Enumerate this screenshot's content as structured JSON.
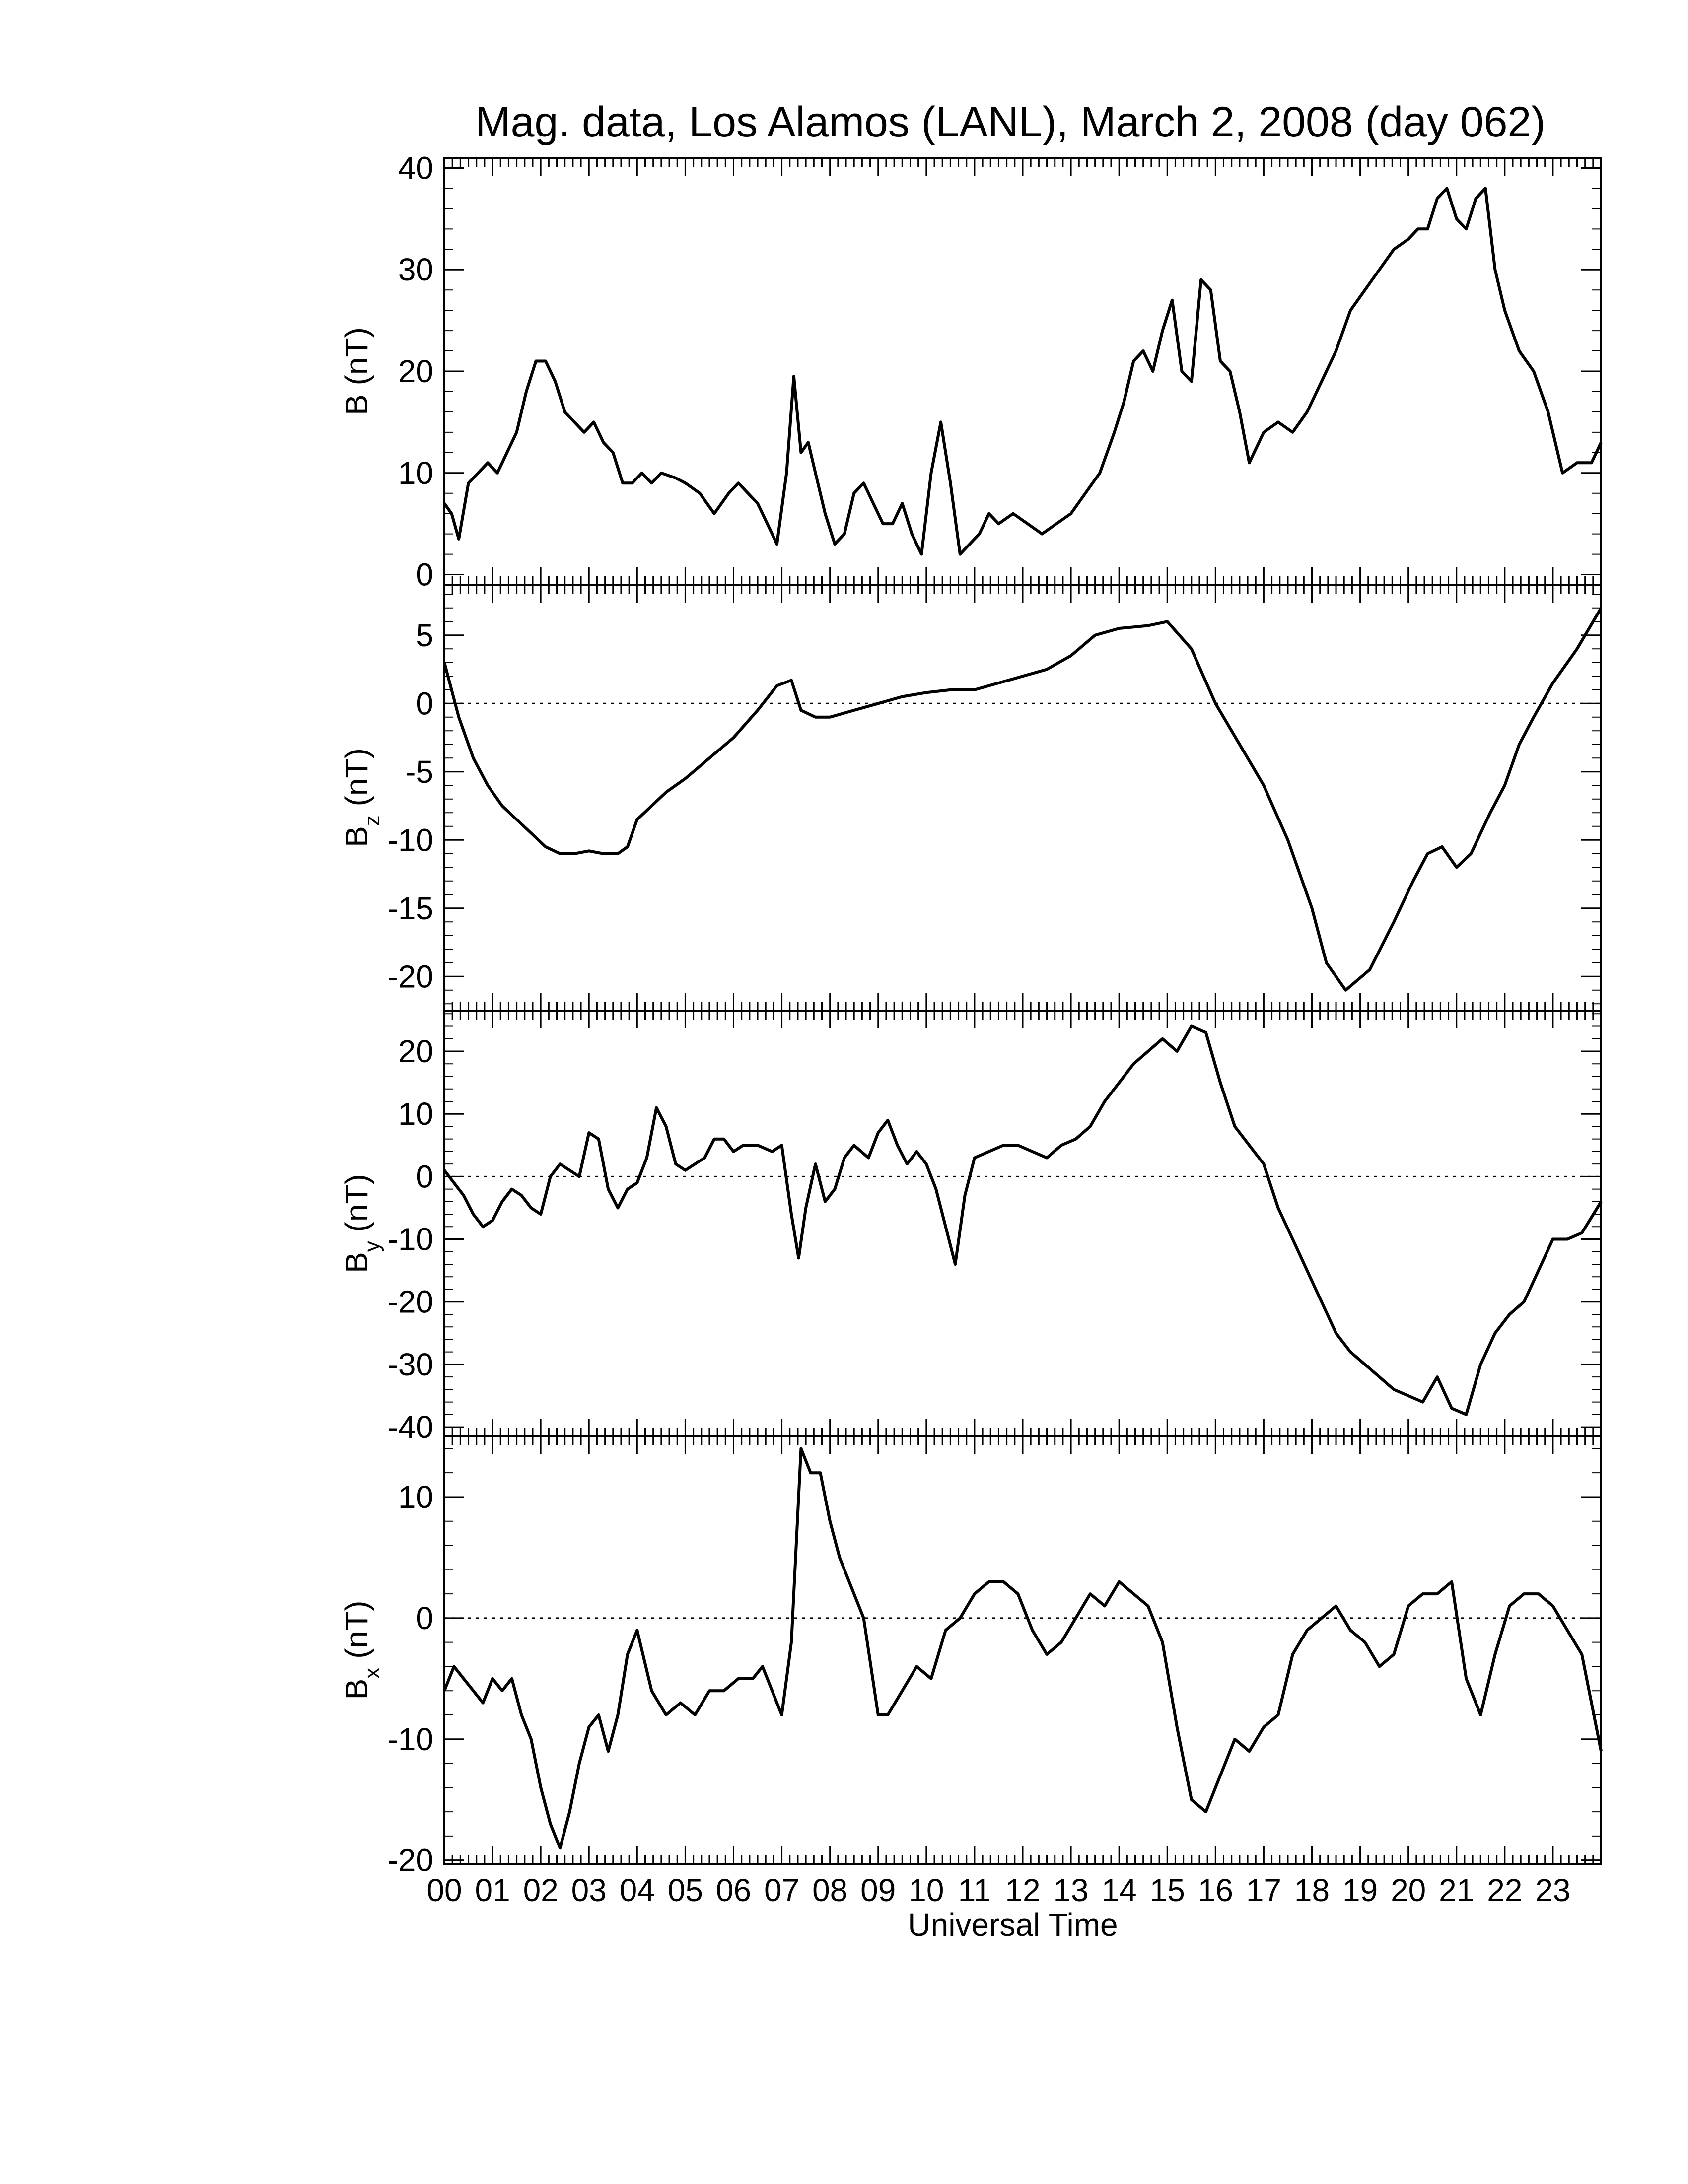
{
  "chart_data": [
    {
      "type": "line",
      "title": "Mag. data, Los Alamos (LANL), March 2, 2008 (day 062)",
      "ylabel": "B (nT)",
      "ylabel_main": "B (nT)",
      "ylabel_sub": "",
      "ylim": [
        -1,
        41
      ],
      "yticks": [
        0,
        10,
        20,
        30,
        40
      ],
      "zero_line": false,
      "grid": false,
      "xlim": [
        0,
        24
      ],
      "x": [
        0,
        0.15,
        0.3,
        0.5,
        0.7,
        0.9,
        1.1,
        1.3,
        1.5,
        1.7,
        1.9,
        2.1,
        2.3,
        2.5,
        2.7,
        2.9,
        3.1,
        3.3,
        3.5,
        3.7,
        3.9,
        4.1,
        4.3,
        4.5,
        4.8,
        5.0,
        5.3,
        5.6,
        5.9,
        6.1,
        6.3,
        6.5,
        6.7,
        6.9,
        7.1,
        7.25,
        7.4,
        7.55,
        7.7,
        7.9,
        8.1,
        8.3,
        8.5,
        8.7,
        8.9,
        9.1,
        9.3,
        9.5,
        9.7,
        9.9,
        10.1,
        10.3,
        10.5,
        10.7,
        10.9,
        11.1,
        11.3,
        11.5,
        11.8,
        12.1,
        12.4,
        12.7,
        13.0,
        13.3,
        13.6,
        13.9,
        14.1,
        14.3,
        14.5,
        14.7,
        14.9,
        15.1,
        15.3,
        15.5,
        15.7,
        15.9,
        16.1,
        16.3,
        16.5,
        16.7,
        17.0,
        17.3,
        17.6,
        17.9,
        18.2,
        18.5,
        18.8,
        19.1,
        19.4,
        19.7,
        20.0,
        20.2,
        20.4,
        20.6,
        20.8,
        21.0,
        21.2,
        21.4,
        21.6,
        21.8,
        22.0,
        22.3,
        22.6,
        22.9,
        23.2,
        23.5,
        23.8,
        24.0
      ],
      "series": [
        {
          "name": "",
          "values": [
            7,
            6,
            3.5,
            9,
            10,
            11,
            10,
            12,
            14,
            18,
            21,
            21,
            19,
            16,
            15,
            14,
            15,
            13,
            12,
            9,
            9,
            10,
            9,
            10,
            9.5,
            9,
            8,
            6,
            8,
            9,
            8,
            7,
            5,
            3,
            10,
            19.5,
            12,
            13,
            10,
            6,
            3,
            4,
            8,
            9,
            7,
            5,
            5,
            7,
            4,
            2,
            10,
            15,
            9,
            2,
            3,
            4,
            6,
            5,
            6,
            5,
            4,
            5,
            6,
            8,
            10,
            14,
            17,
            21,
            22,
            20,
            24,
            27,
            20,
            19,
            29,
            28,
            21,
            20,
            16,
            11,
            14,
            15,
            14,
            16,
            19,
            22,
            26,
            28,
            30,
            32,
            33,
            34,
            34,
            37,
            38,
            35,
            34,
            37,
            38,
            30,
            26,
            22,
            20,
            16,
            10,
            11,
            11,
            13
          ]
        }
      ]
    },
    {
      "type": "line",
      "title": "",
      "ylabel": "Bz (nT)",
      "ylabel_main": "B",
      "ylabel_sub": "z",
      "ylabel_unit": "(nT)",
      "ylim": [
        -22.5,
        8.7
      ],
      "yticks": [
        -20,
        -15,
        -10,
        -5,
        0,
        5
      ],
      "zero_line": true,
      "grid": false,
      "xlim": [
        0,
        24
      ],
      "x": [
        0,
        0.3,
        0.6,
        0.9,
        1.2,
        1.5,
        1.8,
        2.1,
        2.4,
        2.7,
        3.0,
        3.3,
        3.6,
        3.8,
        4.0,
        4.3,
        4.6,
        5.0,
        5.5,
        6.0,
        6.5,
        6.9,
        7.2,
        7.4,
        7.7,
        8.0,
        8.5,
        9.0,
        9.5,
        10.0,
        10.5,
        11.0,
        11.5,
        12.0,
        12.5,
        13.0,
        13.5,
        14.0,
        14.3,
        14.6,
        15.0,
        15.5,
        16.0,
        16.5,
        17.0,
        17.5,
        18.0,
        18.3,
        18.7,
        19.2,
        19.7,
        20.1,
        20.4,
        20.7,
        21.0,
        21.3,
        21.7,
        22.0,
        22.3,
        22.6,
        23.0,
        23.5,
        24.0
      ],
      "series": [
        {
          "name": "",
          "values": [
            3,
            -1,
            -4,
            -6,
            -7.5,
            -8.5,
            -9.5,
            -10.5,
            -11,
            -11,
            -10.8,
            -11,
            -11,
            -10.5,
            -8.5,
            -7.5,
            -6.5,
            -5.5,
            -4,
            -2.5,
            -0.5,
            1.3,
            1.7,
            -0.5,
            -1,
            -1,
            -0.5,
            0,
            0.5,
            0.8,
            1,
            1,
            1.5,
            2,
            2.5,
            3.5,
            5,
            5.5,
            5.6,
            5.7,
            6,
            4,
            0,
            -3,
            -6,
            -10,
            -15,
            -19,
            -21,
            -19.5,
            -16,
            -13,
            -11,
            -10.5,
            -12,
            -11,
            -8,
            -6,
            -3,
            -1,
            1.5,
            4,
            7
          ]
        }
      ]
    },
    {
      "type": "line",
      "title": "",
      "ylabel": "By (nT)",
      "ylabel_main": "B",
      "ylabel_sub": "y",
      "ylabel_unit": "(nT)",
      "ylim": [
        -41.5,
        26.5
      ],
      "yticks": [
        -40,
        -30,
        -20,
        -10,
        0,
        10,
        20
      ],
      "zero_line": true,
      "grid": false,
      "xlim": [
        0,
        24
      ],
      "x": [
        0,
        0.2,
        0.4,
        0.6,
        0.8,
        1.0,
        1.2,
        1.4,
        1.6,
        1.8,
        2.0,
        2.2,
        2.4,
        2.6,
        2.8,
        3.0,
        3.2,
        3.4,
        3.6,
        3.8,
        4.0,
        4.2,
        4.4,
        4.6,
        4.8,
        5.0,
        5.2,
        5.4,
        5.6,
        5.8,
        6.0,
        6.2,
        6.5,
        6.8,
        7.0,
        7.2,
        7.35,
        7.5,
        7.7,
        7.9,
        8.1,
        8.3,
        8.5,
        8.8,
        9.0,
        9.2,
        9.4,
        9.6,
        9.8,
        10.0,
        10.2,
        10.4,
        10.6,
        10.8,
        11.0,
        11.3,
        11.6,
        11.9,
        12.2,
        12.5,
        12.8,
        13.1,
        13.4,
        13.7,
        14.0,
        14.3,
        14.6,
        14.9,
        15.2,
        15.5,
        15.8,
        16.1,
        16.4,
        16.7,
        17.0,
        17.3,
        17.6,
        17.9,
        18.2,
        18.5,
        18.8,
        19.1,
        19.4,
        19.7,
        20.0,
        20.3,
        20.6,
        20.9,
        21.2,
        21.5,
        21.8,
        22.1,
        22.4,
        22.7,
        23.0,
        23.3,
        23.6,
        24.0
      ],
      "series": [
        {
          "name": "",
          "values": [
            1,
            -1,
            -3,
            -6,
            -8,
            -7,
            -4,
            -2,
            -3,
            -5,
            -6,
            0,
            2,
            1,
            0,
            7,
            6,
            -2,
            -5,
            -2,
            -1,
            3,
            11,
            8,
            2,
            1,
            2,
            3,
            6,
            6,
            4,
            5,
            5,
            4,
            5,
            -6,
            -13,
            -5,
            2,
            -4,
            -2,
            3,
            5,
            3,
            7,
            9,
            5,
            2,
            4,
            2,
            -2,
            -8,
            -14,
            -3,
            3,
            4,
            5,
            5,
            4,
            3,
            5,
            6,
            8,
            12,
            15,
            18,
            20,
            22,
            20,
            24,
            23,
            15,
            8,
            5,
            2,
            -5,
            -10,
            -15,
            -20,
            -25,
            -28,
            -30,
            -32,
            -34,
            -35,
            -36,
            -32,
            -37,
            -38,
            -30,
            -25,
            -22,
            -20,
            -15,
            -10,
            -10,
            -9,
            -4
          ]
        }
      ]
    },
    {
      "type": "line",
      "title": "",
      "ylabel": "Bx (nT)",
      "ylabel_main": "B",
      "ylabel_sub": "x",
      "ylabel_unit": "(nT)",
      "ylim": [
        -20.3,
        15
      ],
      "yticks": [
        -20,
        -10,
        0,
        10
      ],
      "zero_line": true,
      "grid": false,
      "xlim": [
        0,
        24
      ],
      "xlabel": "Universal Time",
      "xtick_labels": [
        "00",
        "01",
        "02",
        "03",
        "04",
        "05",
        "06",
        "07",
        "08",
        "09",
        "10",
        "11",
        "12",
        "13",
        "14",
        "15",
        "16",
        "17",
        "18",
        "19",
        "20",
        "21",
        "22",
        "23"
      ],
      "x": [
        0,
        0.2,
        0.4,
        0.6,
        0.8,
        1.0,
        1.2,
        1.4,
        1.6,
        1.8,
        2.0,
        2.2,
        2.4,
        2.6,
        2.8,
        3.0,
        3.2,
        3.4,
        3.6,
        3.8,
        4.0,
        4.3,
        4.6,
        4.9,
        5.2,
        5.5,
        5.8,
        6.1,
        6.4,
        6.6,
        6.8,
        7.0,
        7.2,
        7.4,
        7.6,
        7.8,
        8.0,
        8.2,
        8.4,
        8.7,
        9.0,
        9.2,
        9.5,
        9.8,
        10.1,
        10.4,
        10.7,
        11.0,
        11.3,
        11.6,
        11.9,
        12.2,
        12.5,
        12.8,
        13.1,
        13.4,
        13.7,
        14.0,
        14.3,
        14.6,
        14.9,
        15.2,
        15.5,
        15.8,
        16.1,
        16.4,
        16.7,
        17.0,
        17.3,
        17.6,
        17.9,
        18.2,
        18.5,
        18.8,
        19.1,
        19.4,
        19.7,
        20.0,
        20.3,
        20.6,
        20.9,
        21.2,
        21.5,
        21.8,
        22.1,
        22.4,
        22.7,
        23.0,
        23.3,
        23.6,
        24.0
      ],
      "series": [
        {
          "name": "",
          "values": [
            -6,
            -4,
            -5,
            -6,
            -7,
            -5,
            -6,
            -5,
            -8,
            -10,
            -14,
            -17,
            -19,
            -16,
            -12,
            -9,
            -8,
            -11,
            -8,
            -3,
            -1,
            -6,
            -8,
            -7,
            -8,
            -6,
            -6,
            -5,
            -5,
            -4,
            -6,
            -8,
            -2,
            14,
            12,
            12,
            8,
            5,
            3,
            0,
            -8,
            -8,
            -6,
            -4,
            -5,
            -1,
            0,
            2,
            3,
            3,
            2,
            -1,
            -3,
            -2,
            0,
            2,
            1,
            3,
            2,
            1,
            -2,
            -9,
            -15,
            -16,
            -13,
            -10,
            -11,
            -9,
            -8,
            -3,
            -1,
            0,
            1,
            -1,
            -2,
            -4,
            -3,
            1,
            2,
            2,
            3,
            -5,
            -8,
            -3,
            1,
            2,
            2,
            1,
            -1,
            -3,
            -11
          ]
        }
      ]
    }
  ]
}
